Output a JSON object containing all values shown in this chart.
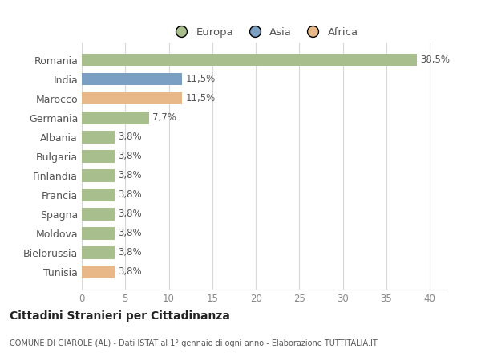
{
  "countries": [
    "Romania",
    "India",
    "Marocco",
    "Germania",
    "Albania",
    "Bulgaria",
    "Finlandia",
    "Francia",
    "Spagna",
    "Moldova",
    "Bielorussia",
    "Tunisia"
  ],
  "values": [
    38.5,
    11.5,
    11.5,
    7.7,
    3.8,
    3.8,
    3.8,
    3.8,
    3.8,
    3.8,
    3.8,
    3.8
  ],
  "labels": [
    "38,5%",
    "11,5%",
    "11,5%",
    "7,7%",
    "3,8%",
    "3,8%",
    "3,8%",
    "3,8%",
    "3,8%",
    "3,8%",
    "3,8%",
    "3,8%"
  ],
  "colors": [
    "#a8be8c",
    "#7a9fc2",
    "#e8b888",
    "#a8be8c",
    "#a8be8c",
    "#a8be8c",
    "#a8be8c",
    "#a8be8c",
    "#a8be8c",
    "#a8be8c",
    "#a8be8c",
    "#e8b888"
  ],
  "legend_labels": [
    "Europa",
    "Asia",
    "Africa"
  ],
  "legend_colors": [
    "#a8be8c",
    "#7a9fc2",
    "#e8b888"
  ],
  "title": "Cittadini Stranieri per Cittadinanza",
  "subtitle": "COMUNE DI GIAROLE (AL) - Dati ISTAT al 1° gennaio di ogni anno - Elaborazione TUTTITALIA.IT",
  "xlim": [
    0,
    42
  ],
  "xticks": [
    0,
    5,
    10,
    15,
    20,
    25,
    30,
    35,
    40
  ],
  "background_color": "#ffffff",
  "axes_bg_color": "#ffffff",
  "grid_color": "#d8d8d8",
  "bar_height": 0.65
}
